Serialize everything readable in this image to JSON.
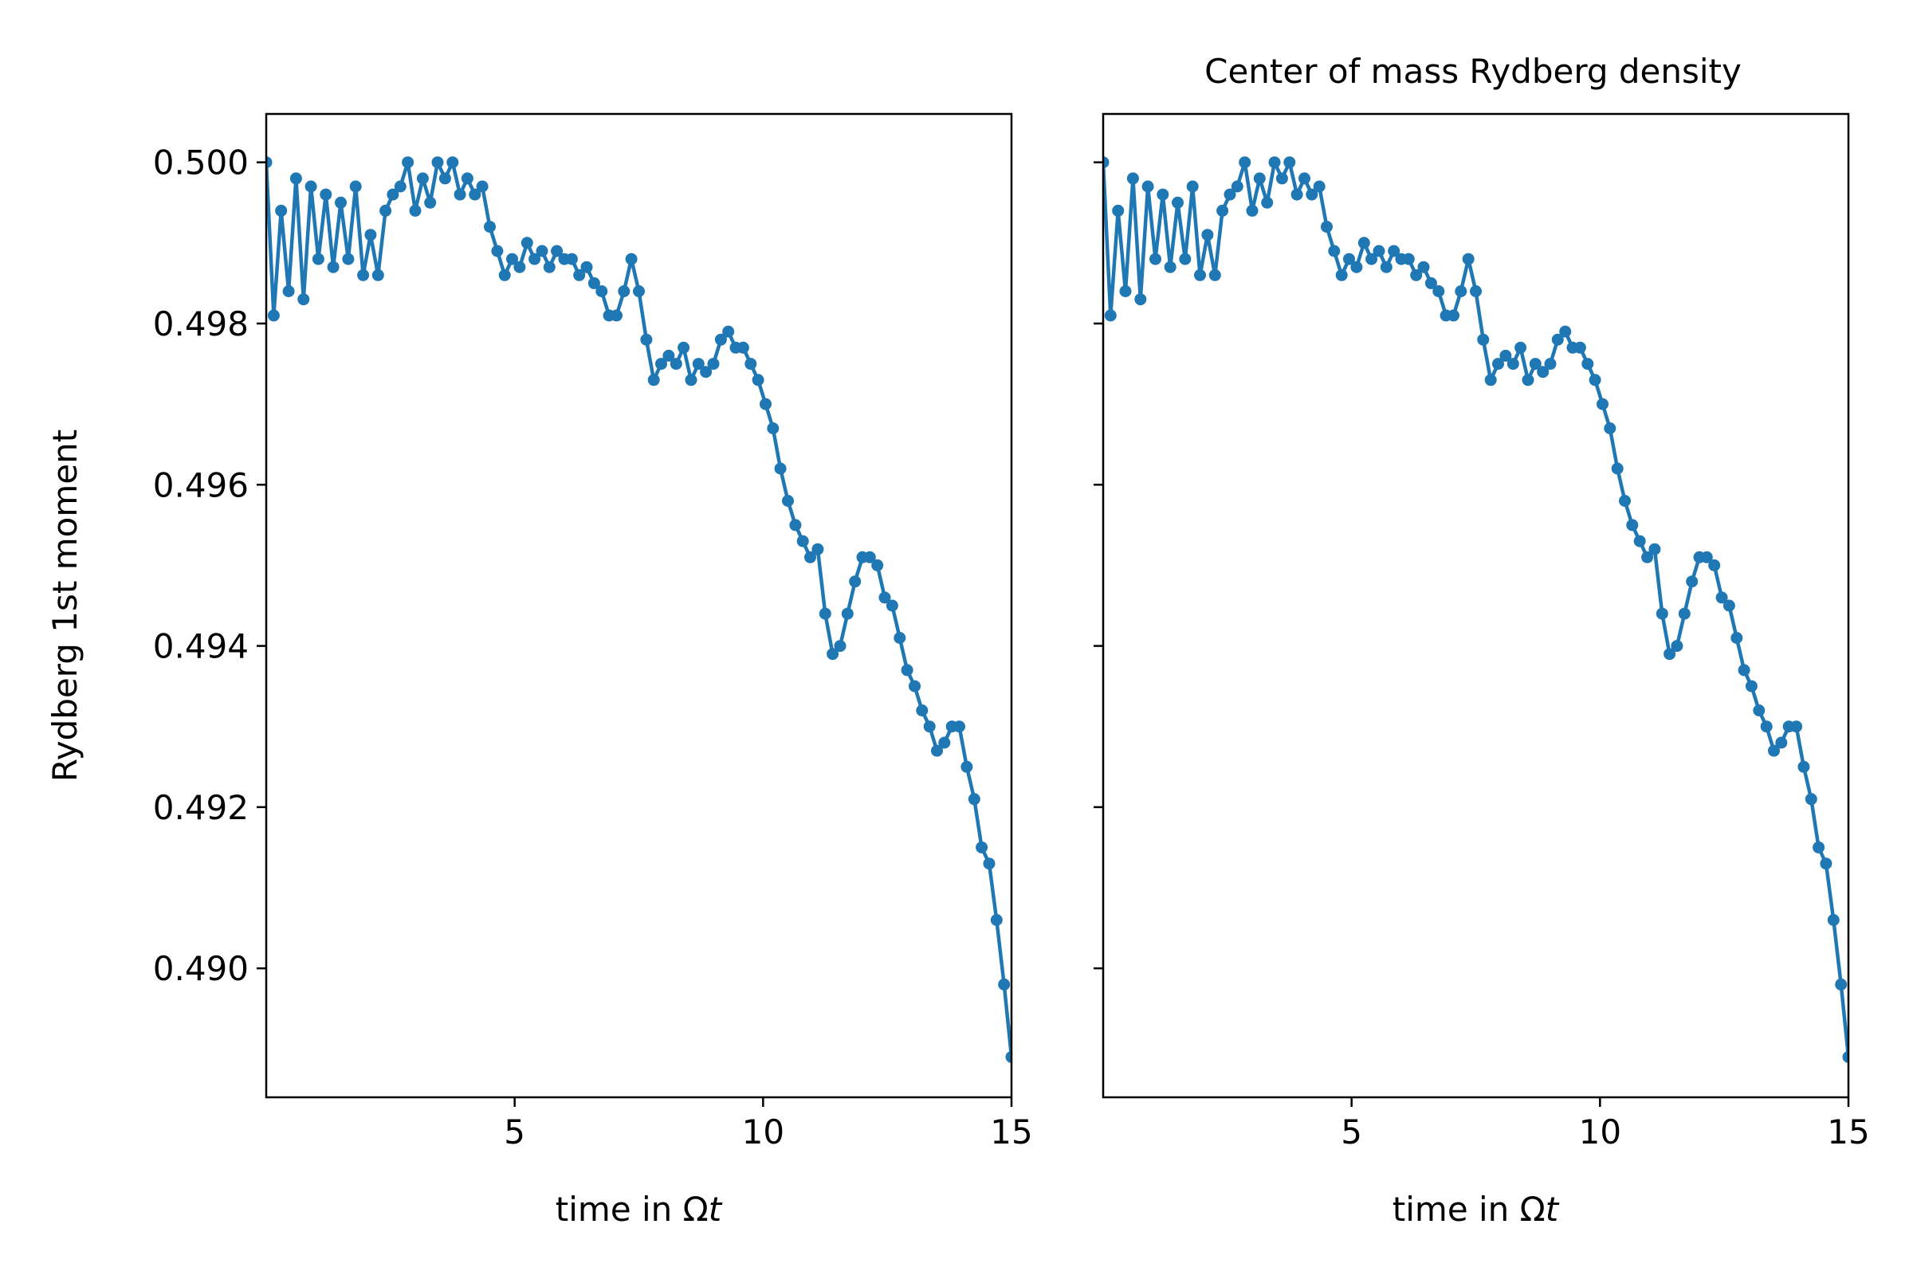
{
  "figure": {
    "title": "Center of mass Rydberg density"
  },
  "colors": {
    "series": "#1f77b4",
    "axis": "#000000",
    "background": "#ffffff"
  },
  "chart_data": [
    {
      "type": "line",
      "title": "",
      "xlabel_prefix": "time in Ω",
      "xlabel_var": "t",
      "ylabel": "Rydberg 1st moment",
      "xlim": [
        0,
        15
      ],
      "ylim": [
        0.4884,
        0.5006
      ],
      "xticks": [
        5,
        10,
        15
      ],
      "xtick_labels": [
        "5",
        "10",
        "15"
      ],
      "yticks": [
        0.49,
        0.492,
        0.494,
        0.496,
        0.498,
        0.5
      ],
      "ytick_labels": [
        "0.490",
        "0.492",
        "0.494",
        "0.496",
        "0.498",
        "0.500"
      ],
      "show_ytick_labels": true,
      "grid": false,
      "marker": "circle",
      "x": [
        0.0,
        0.15,
        0.3,
        0.45,
        0.6,
        0.75,
        0.9,
        1.05,
        1.2,
        1.35,
        1.5,
        1.65,
        1.8,
        1.95,
        2.1,
        2.25,
        2.4,
        2.55,
        2.7,
        2.85,
        3.0,
        3.15,
        3.3,
        3.45,
        3.6,
        3.75,
        3.9,
        4.05,
        4.2,
        4.35,
        4.5,
        4.65,
        4.8,
        4.95,
        5.1,
        5.25,
        5.4,
        5.55,
        5.7,
        5.85,
        6.0,
        6.15,
        6.3,
        6.45,
        6.6,
        6.75,
        6.9,
        7.05,
        7.2,
        7.35,
        7.5,
        7.65,
        7.8,
        7.95,
        8.1,
        8.25,
        8.4,
        8.55,
        8.7,
        8.85,
        9.0,
        9.15,
        9.3,
        9.45,
        9.6,
        9.75,
        9.9,
        10.05,
        10.2,
        10.35,
        10.5,
        10.65,
        10.8,
        10.95,
        11.1,
        11.25,
        11.4,
        11.55,
        11.7,
        11.85,
        12.0,
        12.15,
        12.3,
        12.45,
        12.6,
        12.75,
        12.9,
        13.05,
        13.2,
        13.35,
        13.5,
        13.65,
        13.8,
        13.95,
        14.1,
        14.25,
        14.4,
        14.55,
        14.7,
        14.85,
        15.0
      ],
      "y": [
        0.5,
        0.4981,
        0.4994,
        0.4984,
        0.4998,
        0.4983,
        0.4997,
        0.4988,
        0.4996,
        0.4987,
        0.4995,
        0.4988,
        0.4997,
        0.4986,
        0.4991,
        0.4986,
        0.4994,
        0.4996,
        0.4997,
        0.5,
        0.4994,
        0.4998,
        0.4995,
        0.5,
        0.4998,
        0.5,
        0.4996,
        0.4998,
        0.4996,
        0.4997,
        0.4992,
        0.4989,
        0.4986,
        0.4988,
        0.4987,
        0.499,
        0.4988,
        0.4989,
        0.4987,
        0.4989,
        0.4988,
        0.4988,
        0.4986,
        0.4987,
        0.4985,
        0.4984,
        0.4981,
        0.4981,
        0.4984,
        0.4988,
        0.4984,
        0.4978,
        0.4973,
        0.4975,
        0.4976,
        0.4975,
        0.4977,
        0.4973,
        0.4975,
        0.4974,
        0.4975,
        0.4978,
        0.4979,
        0.4977,
        0.4977,
        0.4975,
        0.4973,
        0.497,
        0.4967,
        0.4962,
        0.4958,
        0.4955,
        0.4953,
        0.4951,
        0.4952,
        0.4944,
        0.4939,
        0.494,
        0.4944,
        0.4948,
        0.4951,
        0.4951,
        0.495,
        0.4946,
        0.4945,
        0.4941,
        0.4937,
        0.4935,
        0.4932,
        0.493,
        0.4927,
        0.4928,
        0.493,
        0.493,
        0.4925,
        0.4921,
        0.4915,
        0.4913,
        0.4906,
        0.4898,
        0.4889
      ]
    },
    {
      "type": "line",
      "title": "Center of mass Rydberg density",
      "xlabel_prefix": "time in Ω",
      "xlabel_var": "t",
      "ylabel": "",
      "xlim": [
        0,
        15
      ],
      "ylim": [
        0.4884,
        0.5006
      ],
      "xticks": [
        5,
        10,
        15
      ],
      "xtick_labels": [
        "5",
        "10",
        "15"
      ],
      "yticks": [
        0.49,
        0.492,
        0.494,
        0.496,
        0.498,
        0.5
      ],
      "ytick_labels": [
        "",
        "",
        "",
        "",
        "",
        ""
      ],
      "show_ytick_labels": false,
      "grid": false,
      "marker": "circle",
      "x": [
        0.0,
        0.15,
        0.3,
        0.45,
        0.6,
        0.75,
        0.9,
        1.05,
        1.2,
        1.35,
        1.5,
        1.65,
        1.8,
        1.95,
        2.1,
        2.25,
        2.4,
        2.55,
        2.7,
        2.85,
        3.0,
        3.15,
        3.3,
        3.45,
        3.6,
        3.75,
        3.9,
        4.05,
        4.2,
        4.35,
        4.5,
        4.65,
        4.8,
        4.95,
        5.1,
        5.25,
        5.4,
        5.55,
        5.7,
        5.85,
        6.0,
        6.15,
        6.3,
        6.45,
        6.6,
        6.75,
        6.9,
        7.05,
        7.2,
        7.35,
        7.5,
        7.65,
        7.8,
        7.95,
        8.1,
        8.25,
        8.4,
        8.55,
        8.7,
        8.85,
        9.0,
        9.15,
        9.3,
        9.45,
        9.6,
        9.75,
        9.9,
        10.05,
        10.2,
        10.35,
        10.5,
        10.65,
        10.8,
        10.95,
        11.1,
        11.25,
        11.4,
        11.55,
        11.7,
        11.85,
        12.0,
        12.15,
        12.3,
        12.45,
        12.6,
        12.75,
        12.9,
        13.05,
        13.2,
        13.35,
        13.5,
        13.65,
        13.8,
        13.95,
        14.1,
        14.25,
        14.4,
        14.55,
        14.7,
        14.85,
        15.0
      ],
      "y": [
        0.5,
        0.4981,
        0.4994,
        0.4984,
        0.4998,
        0.4983,
        0.4997,
        0.4988,
        0.4996,
        0.4987,
        0.4995,
        0.4988,
        0.4997,
        0.4986,
        0.4991,
        0.4986,
        0.4994,
        0.4996,
        0.4997,
        0.5,
        0.4994,
        0.4998,
        0.4995,
        0.5,
        0.4998,
        0.5,
        0.4996,
        0.4998,
        0.4996,
        0.4997,
        0.4992,
        0.4989,
        0.4986,
        0.4988,
        0.4987,
        0.499,
        0.4988,
        0.4989,
        0.4987,
        0.4989,
        0.4988,
        0.4988,
        0.4986,
        0.4987,
        0.4985,
        0.4984,
        0.4981,
        0.4981,
        0.4984,
        0.4988,
        0.4984,
        0.4978,
        0.4973,
        0.4975,
        0.4976,
        0.4975,
        0.4977,
        0.4973,
        0.4975,
        0.4974,
        0.4975,
        0.4978,
        0.4979,
        0.4977,
        0.4977,
        0.4975,
        0.4973,
        0.497,
        0.4967,
        0.4962,
        0.4958,
        0.4955,
        0.4953,
        0.4951,
        0.4952,
        0.4944,
        0.4939,
        0.494,
        0.4944,
        0.4948,
        0.4951,
        0.4951,
        0.495,
        0.4946,
        0.4945,
        0.4941,
        0.4937,
        0.4935,
        0.4932,
        0.493,
        0.4927,
        0.4928,
        0.493,
        0.493,
        0.4925,
        0.4921,
        0.4915,
        0.4913,
        0.4906,
        0.4898,
        0.4889
      ]
    }
  ]
}
